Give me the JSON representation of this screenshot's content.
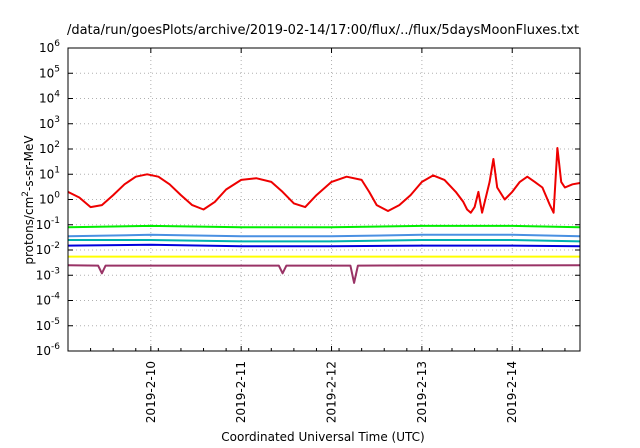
{
  "chart_data": {
    "type": "line",
    "title": "/data/run/goesPlots/archive/2019-02-14/17:00/flux/../flux/5daysMoonFluxes.txt",
    "xlabel": "Coordinated Universal Time (UTC)",
    "ylabel": {
      "prefix": "protons/cm",
      "sup": "2",
      "suffix": "-s-sr-MeV"
    },
    "yscale": "log",
    "ylim": [
      1e-06,
      1000000.0
    ],
    "xlim": [
      "2019-02-09T02:00",
      "2019-02-14T18:00"
    ],
    "grid": true,
    "y_ticks": [
      {
        "value": 1e-06,
        "base": "10",
        "exp": "-6"
      },
      {
        "value": 1e-05,
        "base": "10",
        "exp": "-5"
      },
      {
        "value": 0.0001,
        "base": "10",
        "exp": "-4"
      },
      {
        "value": 0.001,
        "base": "10",
        "exp": "-3"
      },
      {
        "value": 0.01,
        "base": "10",
        "exp": "-2"
      },
      {
        "value": 0.1,
        "base": "10",
        "exp": "-1"
      },
      {
        "value": 1,
        "base": "10",
        "exp": "0"
      },
      {
        "value": 10,
        "base": "10",
        "exp": "1"
      },
      {
        "value": 100,
        "base": "10",
        "exp": "2"
      },
      {
        "value": 1000,
        "base": "10",
        "exp": "3"
      },
      {
        "value": 10000,
        "base": "10",
        "exp": "4"
      },
      {
        "value": 100000,
        "base": "10",
        "exp": "5"
      },
      {
        "value": 1000000,
        "base": "10",
        "exp": "6"
      }
    ],
    "x_ticks": [
      "2019-2-10",
      "2019-2-11",
      "2019-2-12",
      "2019-2-13",
      "2019-2-14"
    ],
    "series": [
      {
        "color": "#ee0000",
        "points": [
          [
            "2019-02-09T02:00",
            2.0
          ],
          [
            "2019-02-09T05:00",
            1.2
          ],
          [
            "2019-02-09T08:00",
            0.5
          ],
          [
            "2019-02-09T11:00",
            0.6
          ],
          [
            "2019-02-09T14:00",
            1.5
          ],
          [
            "2019-02-09T17:00",
            4.0
          ],
          [
            "2019-02-09T20:00",
            8.0
          ],
          [
            "2019-02-09T23:00",
            10.0
          ],
          [
            "2019-02-10T02:00",
            8.0
          ],
          [
            "2019-02-10T05:00",
            4.0
          ],
          [
            "2019-02-10T08:00",
            1.5
          ],
          [
            "2019-02-10T11:00",
            0.6
          ],
          [
            "2019-02-10T14:00",
            0.4
          ],
          [
            "2019-02-10T17:00",
            0.8
          ],
          [
            "2019-02-10T20:00",
            2.5
          ],
          [
            "2019-02-11T00:00",
            6.0
          ],
          [
            "2019-02-11T04:00",
            7.0
          ],
          [
            "2019-02-11T08:00",
            5.0
          ],
          [
            "2019-02-11T11:00",
            2.0
          ],
          [
            "2019-02-11T14:00",
            0.7
          ],
          [
            "2019-02-11T17:00",
            0.5
          ],
          [
            "2019-02-11T20:00",
            1.5
          ],
          [
            "2019-02-12T00:00",
            5.0
          ],
          [
            "2019-02-12T04:00",
            8.0
          ],
          [
            "2019-02-12T08:00",
            6.0
          ],
          [
            "2019-02-12T10:00",
            2.0
          ],
          [
            "2019-02-12T12:00",
            0.6
          ],
          [
            "2019-02-12T15:00",
            0.35
          ],
          [
            "2019-02-12T18:00",
            0.6
          ],
          [
            "2019-02-12T21:00",
            1.5
          ],
          [
            "2019-02-13T00:00",
            5.0
          ],
          [
            "2019-02-13T03:00",
            9.0
          ],
          [
            "2019-02-13T06:00",
            6.0
          ],
          [
            "2019-02-13T09:00",
            2.0
          ],
          [
            "2019-02-13T11:00",
            0.8
          ],
          [
            "2019-02-13T12:00",
            0.4
          ],
          [
            "2019-02-13T13:00",
            0.3
          ],
          [
            "2019-02-13T14:00",
            0.5
          ],
          [
            "2019-02-13T15:00",
            2.0
          ],
          [
            "2019-02-13T16:00",
            0.3
          ],
          [
            "2019-02-13T18:00",
            5.0
          ],
          [
            "2019-02-13T19:00",
            40.0
          ],
          [
            "2019-02-13T20:00",
            3.0
          ],
          [
            "2019-02-13T22:00",
            1.0
          ],
          [
            "2019-02-14T00:00",
            2.0
          ],
          [
            "2019-02-14T02:00",
            5.0
          ],
          [
            "2019-02-14T04:00",
            8.0
          ],
          [
            "2019-02-14T06:00",
            5.0
          ],
          [
            "2019-02-14T08:00",
            3.0
          ],
          [
            "2019-02-14T10:00",
            0.6
          ],
          [
            "2019-02-14T11:00",
            0.3
          ],
          [
            "2019-02-14T12:00",
            110.0
          ],
          [
            "2019-02-14T13:00",
            5.0
          ],
          [
            "2019-02-14T14:00",
            3.0
          ],
          [
            "2019-02-14T16:00",
            4.0
          ],
          [
            "2019-02-14T18:00",
            4.5
          ]
        ]
      },
      {
        "color": "#00ee00",
        "points": [
          [
            "2019-02-09T02:00",
            0.08
          ],
          [
            "2019-02-10T00:00",
            0.09
          ],
          [
            "2019-02-11T00:00",
            0.08
          ],
          [
            "2019-02-12T00:00",
            0.08
          ],
          [
            "2019-02-13T00:00",
            0.09
          ],
          [
            "2019-02-14T00:00",
            0.09
          ],
          [
            "2019-02-14T18:00",
            0.08
          ]
        ]
      },
      {
        "color": "#4a90e2",
        "points": [
          [
            "2019-02-09T02:00",
            0.035
          ],
          [
            "2019-02-10T00:00",
            0.04
          ],
          [
            "2019-02-11T00:00",
            0.035
          ],
          [
            "2019-02-12T00:00",
            0.035
          ],
          [
            "2019-02-13T00:00",
            0.04
          ],
          [
            "2019-02-14T00:00",
            0.04
          ],
          [
            "2019-02-14T18:00",
            0.035
          ]
        ]
      },
      {
        "color": "#00b0b0",
        "points": [
          [
            "2019-02-09T02:00",
            0.025
          ],
          [
            "2019-02-10T00:00",
            0.025
          ],
          [
            "2019-02-11T00:00",
            0.022
          ],
          [
            "2019-02-12T00:00",
            0.022
          ],
          [
            "2019-02-13T00:00",
            0.025
          ],
          [
            "2019-02-14T00:00",
            0.025
          ],
          [
            "2019-02-14T18:00",
            0.022
          ]
        ]
      },
      {
        "color": "#0000dd",
        "points": [
          [
            "2019-02-09T02:00",
            0.015
          ],
          [
            "2019-02-10T00:00",
            0.016
          ],
          [
            "2019-02-11T00:00",
            0.014
          ],
          [
            "2019-02-12T00:00",
            0.014
          ],
          [
            "2019-02-13T00:00",
            0.015
          ],
          [
            "2019-02-14T00:00",
            0.015
          ],
          [
            "2019-02-14T18:00",
            0.014
          ]
        ]
      },
      {
        "color": "#ffff00",
        "points": [
          [
            "2019-02-09T02:00",
            0.0055
          ],
          [
            "2019-02-10T00:00",
            0.0055
          ],
          [
            "2019-02-11T00:00",
            0.0055
          ],
          [
            "2019-02-12T00:00",
            0.0055
          ],
          [
            "2019-02-13T00:00",
            0.0055
          ],
          [
            "2019-02-14T00:00",
            0.0055
          ],
          [
            "2019-02-14T18:00",
            0.0055
          ]
        ]
      },
      {
        "color": "#993366",
        "points": [
          [
            "2019-02-09T02:00",
            0.0025
          ],
          [
            "2019-02-09T10:00",
            0.0024
          ],
          [
            "2019-02-09T11:00",
            0.0012
          ],
          [
            "2019-02-09T12:00",
            0.0024
          ],
          [
            "2019-02-11T10:00",
            0.0024
          ],
          [
            "2019-02-11T11:00",
            0.0012
          ],
          [
            "2019-02-11T12:00",
            0.0024
          ],
          [
            "2019-02-12T05:00",
            0.0024
          ],
          [
            "2019-02-12T06:00",
            0.0005
          ],
          [
            "2019-02-12T07:00",
            0.0024
          ],
          [
            "2019-02-14T18:00",
            0.0025
          ]
        ]
      }
    ]
  }
}
